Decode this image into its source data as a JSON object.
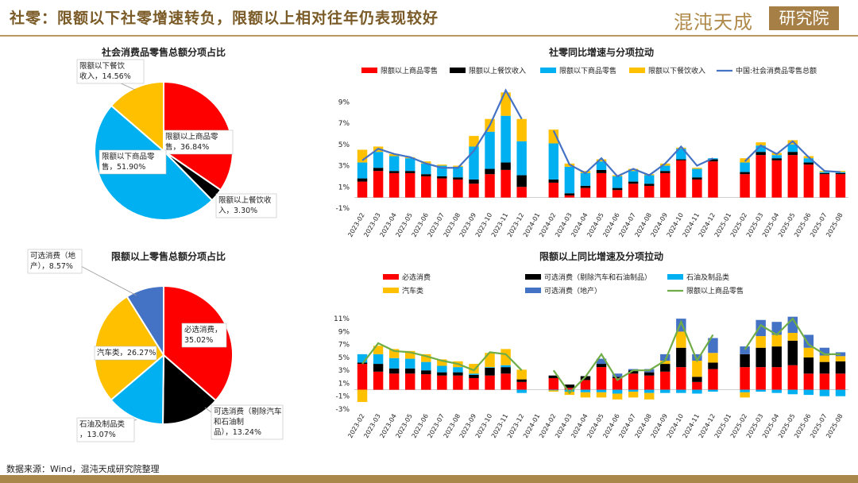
{
  "header": {
    "title": "社零：限额以下社零增速转负，限额以上相对往年仍表现较好",
    "logo_text": "混沌天成",
    "logo_badge": "研究院"
  },
  "footer": {
    "source": "数据来源：Wind，混沌天成研究院整理"
  },
  "colors": {
    "red": "#ff0000",
    "black": "#000000",
    "cyan": "#00b0f0",
    "yellow": "#ffc000",
    "blue": "#4472c4",
    "green": "#70ad47",
    "brown": "#a9874b"
  },
  "chart_data": [
    {
      "id": "pie1",
      "type": "pie",
      "title": "社会消费品零售总额分项占比",
      "slices": [
        {
          "label": "限额以上商品零售，36.84%",
          "value": 36.84,
          "color": "#ff0000"
        },
        {
          "label": "限额以上餐饮收入，3.30%",
          "value": 3.3,
          "color": "#000000"
        },
        {
          "label": "限额以下商品零售，51.90%",
          "value": 51.9,
          "color": "#00b0f0"
        },
        {
          "label": "限额以下餐饮收入，14.56%",
          "value": 14.56,
          "color": "#ffc000"
        }
      ]
    },
    {
      "id": "pie2",
      "type": "pie",
      "title": "限额以上零售总额分项占比",
      "slices": [
        {
          "label": "必选消费，35.02%",
          "value": 35.02,
          "color": "#ff0000"
        },
        {
          "label": "可选消费（剔除汽车和石油制品），13.24%",
          "value": 13.24,
          "color": "#000000"
        },
        {
          "label": "石油及制品类，13.07%",
          "value": 13.07,
          "color": "#00b0f0"
        },
        {
          "label": "汽车类，26.27%",
          "value": 26.27,
          "color": "#ffc000"
        },
        {
          "label": "可选消费（地产），8.57%",
          "value": 8.57,
          "color": "#4472c4"
        }
      ]
    },
    {
      "id": "bar1",
      "type": "bar",
      "title": "社零同比增速与分项拉动",
      "categories": [
        "2023-02",
        "2023-03",
        "2023-04",
        "2023-05",
        "2023-06",
        "2023-07",
        "2023-08",
        "2023-09",
        "2023-10",
        "2023-11",
        "2023-12",
        "2024-01",
        "2024-02",
        "2024-03",
        "2024-04",
        "2024-05",
        "2024-06",
        "2024-07",
        "2024-08",
        "2024-09",
        "2024-10",
        "2024-11",
        "2024-12",
        "2025-01",
        "2025-02",
        "2025-03",
        "2025-04",
        "2025-05",
        "2025-06",
        "2025-07",
        "2025-08"
      ],
      "series": [
        {
          "name": "限额以上商品零售",
          "color": "#ff0000",
          "values": [
            1.5,
            2.5,
            2.3,
            2.3,
            2.0,
            1.8,
            1.7,
            1.3,
            2.2,
            2.6,
            1.0,
            null,
            1.4,
            0.2,
            0.9,
            2.3,
            0.7,
            1.3,
            1.1,
            2.3,
            3.5,
            1.7,
            3.4,
            null,
            2.2,
            4.0,
            3.5,
            4.0,
            3.1,
            2.2,
            2.2
          ]
        },
        {
          "name": "限额以上餐饮收入",
          "color": "#000000",
          "values": [
            0.3,
            0.3,
            0.2,
            0.2,
            0.2,
            0.2,
            0.2,
            0.4,
            0.5,
            0.7,
            1.1,
            null,
            0.3,
            0.2,
            0.2,
            0.3,
            0.2,
            0.2,
            0.2,
            0.2,
            0.1,
            0.2,
            0.2,
            null,
            0.2,
            0.3,
            0.2,
            0.3,
            0.2,
            0.1,
            0.1
          ]
        },
        {
          "name": "限额以下商品零售",
          "color": "#00b0f0",
          "values": [
            1.5,
            1.5,
            1.4,
            1.2,
            1.0,
            1.0,
            1.0,
            3.1,
            3.5,
            4.4,
            3.2,
            null,
            3.4,
            2.5,
            1.2,
            0.8,
            1.1,
            1.0,
            0.8,
            0.5,
            1.0,
            0.8,
            0.1,
            null,
            0.9,
            0.6,
            0.3,
            0.7,
            0.4,
            0.1,
            0.1
          ]
        },
        {
          "name": "限额以下餐饮收入",
          "color": "#ffc000",
          "values": [
            1.2,
            0.5,
            0.2,
            0.1,
            0.2,
            0.1,
            0.1,
            1.0,
            1.2,
            2.2,
            2.1,
            null,
            1.3,
            0.3,
            0.2,
            0.2,
            0.1,
            0.2,
            0.1,
            0.2,
            0.1,
            0.1,
            0.0,
            null,
            0.4,
            0.3,
            0.2,
            0.4,
            0.2,
            0.1,
            0.1
          ]
        }
      ],
      "line": {
        "name": "中国:社会消费品零售总额",
        "color": "#4472c4",
        "values": [
          3.5,
          4.6,
          4.1,
          3.8,
          3.2,
          2.8,
          2.8,
          4.4,
          6.8,
          10.1,
          7.4,
          null,
          6.3,
          3.1,
          2.3,
          3.7,
          2.0,
          2.7,
          2.1,
          3.2,
          4.8,
          3.0,
          3.7,
          null,
          3.4,
          4.9,
          4.1,
          5.3,
          3.8,
          2.5,
          2.4
        ]
      },
      "yticks": [
        "-1%",
        "1%",
        "3%",
        "5%",
        "7%",
        "9%"
      ],
      "ylim": [
        -1,
        10
      ]
    },
    {
      "id": "bar2",
      "type": "bar",
      "title": "限额以上同比增速及分项拉动",
      "categories": [
        "2023-02",
        "2023-03",
        "2023-04",
        "2023-05",
        "2023-06",
        "2023-07",
        "2023-08",
        "2023-09",
        "2023-10",
        "2023-11",
        "2023-12",
        "2024-01",
        "2024-02",
        "2024-03",
        "2024-04",
        "2024-05",
        "2024-06",
        "2024-07",
        "2024-08",
        "2024-09",
        "2024-10",
        "2024-11",
        "2024-12",
        "2025-01",
        "2025-02",
        "2025-03",
        "2025-04",
        "2025-05",
        "2025-06",
        "2025-07",
        "2025-08"
      ],
      "series": [
        {
          "name": "必选消费",
          "color": "#ff0000",
          "values": [
            4.0,
            2.8,
            2.5,
            2.5,
            2.4,
            2.2,
            2.2,
            1.8,
            2.2,
            2.5,
            1.2,
            null,
            1.8,
            0.3,
            1.5,
            3.5,
            1.8,
            2.5,
            2.2,
            2.8,
            3.5,
            1.2,
            3.2,
            null,
            3.5,
            3.5,
            3.5,
            3.8,
            2.5,
            2.5,
            2.5
          ]
        },
        {
          "name": "可选消费（剔除汽车和石油制品）",
          "color": "#000000",
          "values": [
            0.2,
            1.2,
            0.8,
            0.8,
            0.6,
            0.5,
            0.5,
            0.5,
            1.2,
            1.0,
            0.4,
            null,
            0.4,
            0.5,
            0.6,
            0.5,
            0.2,
            0.5,
            0.5,
            1.2,
            3.0,
            0.8,
            1.0,
            null,
            2.0,
            3.0,
            3.2,
            3.8,
            2.5,
            1.8,
            1.9
          ]
        },
        {
          "name": "石油及制品类",
          "color": "#00b0f0",
          "values": [
            1.3,
            1.5,
            1.6,
            1.5,
            1.3,
            1.0,
            0.8,
            0.2,
            0.1,
            0.3,
            -0.5,
            null,
            -0.1,
            -0.3,
            -0.4,
            -0.4,
            -0.6,
            -0.3,
            -0.5,
            -0.5,
            -0.5,
            -0.6,
            -0.3,
            null,
            -0.4,
            -0.3,
            -0.5,
            -0.7,
            -0.8,
            -1.0,
            -1.0
          ]
        },
        {
          "name": "汽车类",
          "color": "#ffc000",
          "values": [
            -1.9,
            1.3,
            1.4,
            1.2,
            1.2,
            1.0,
            0.9,
            1.5,
            2.2,
            2.5,
            1.5,
            null,
            -0.2,
            -0.5,
            -0.8,
            -0.8,
            -0.9,
            -0.9,
            -1.0,
            0.5,
            2.5,
            2.5,
            1.5,
            null,
            -0.8,
            1.8,
            1.8,
            1.2,
            1.5,
            1.0,
            0.8
          ]
        },
        {
          "name": "可选消费（地产）",
          "color": "#4472c4",
          "values": [
            0.0,
            0.0,
            0.0,
            0.0,
            0.0,
            0.0,
            0.0,
            0.0,
            0.0,
            0.0,
            0.0,
            null,
            0.0,
            0.0,
            0.0,
            0.8,
            0.5,
            0.2,
            0.5,
            1.0,
            2.0,
            1.0,
            2.3,
            null,
            1.2,
            2.5,
            2.0,
            2.5,
            2.0,
            1.2,
            0.6
          ]
        }
      ],
      "line": {
        "name": "限额以上商品零售",
        "color": "#70ad47",
        "values": [
          4.0,
          7.2,
          6.0,
          5.8,
          5.2,
          4.5,
          4.0,
          3.0,
          5.8,
          5.5,
          3.0,
          null,
          3.0,
          -0.5,
          2.0,
          5.5,
          1.5,
          3.0,
          3.0,
          4.5,
          10.5,
          4.5,
          8.5,
          null,
          6.2,
          10.0,
          8.5,
          11.0,
          7.0,
          5.5,
          5.5
        ]
      },
      "yticks": [
        "-3%",
        "-1%",
        "1%",
        "3%",
        "5%",
        "7%",
        "9%",
        "11%"
      ],
      "ylim": [
        -3,
        12
      ]
    }
  ]
}
